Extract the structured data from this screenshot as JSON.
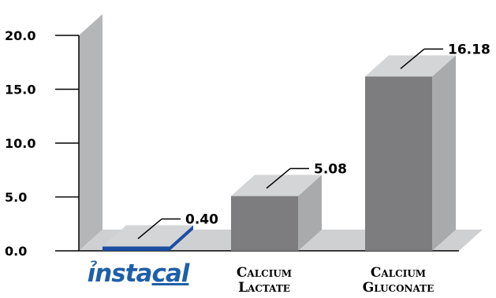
{
  "chart_data": {
    "type": "bar",
    "categories": [
      "instacal",
      "Calcium Lactate",
      "Calcium Gluconate"
    ],
    "values": [
      0.4,
      5.08,
      16.18
    ],
    "value_labels": [
      "0.40",
      "5.08",
      "16.18"
    ],
    "category_label_lines": [
      [
        "instacal"
      ],
      [
        "Calcium",
        "Lactate"
      ],
      [
        "Calcium",
        "Gluconate"
      ]
    ],
    "yticks": [
      "0.0",
      "5.0",
      "10.0",
      "15.0",
      "20.0"
    ],
    "ytick_values": [
      0,
      5,
      10,
      15,
      20
    ],
    "ylim": [
      0,
      20
    ],
    "title": "",
    "xlabel": "",
    "ylabel": "",
    "grid": false,
    "style": "3d",
    "colors": {
      "bar_front": "#7d7d7f",
      "bar_top": "#d4d5d7",
      "bar_side": "#a9aaac",
      "highlight_front": "#1c4fa3",
      "highlight_top": "#d4d5d7",
      "highlight_side": "#1c4fa3",
      "wall": "#b5b6b8",
      "floor": "#cfd0d2",
      "logo": "#1f5fa8"
    }
  }
}
